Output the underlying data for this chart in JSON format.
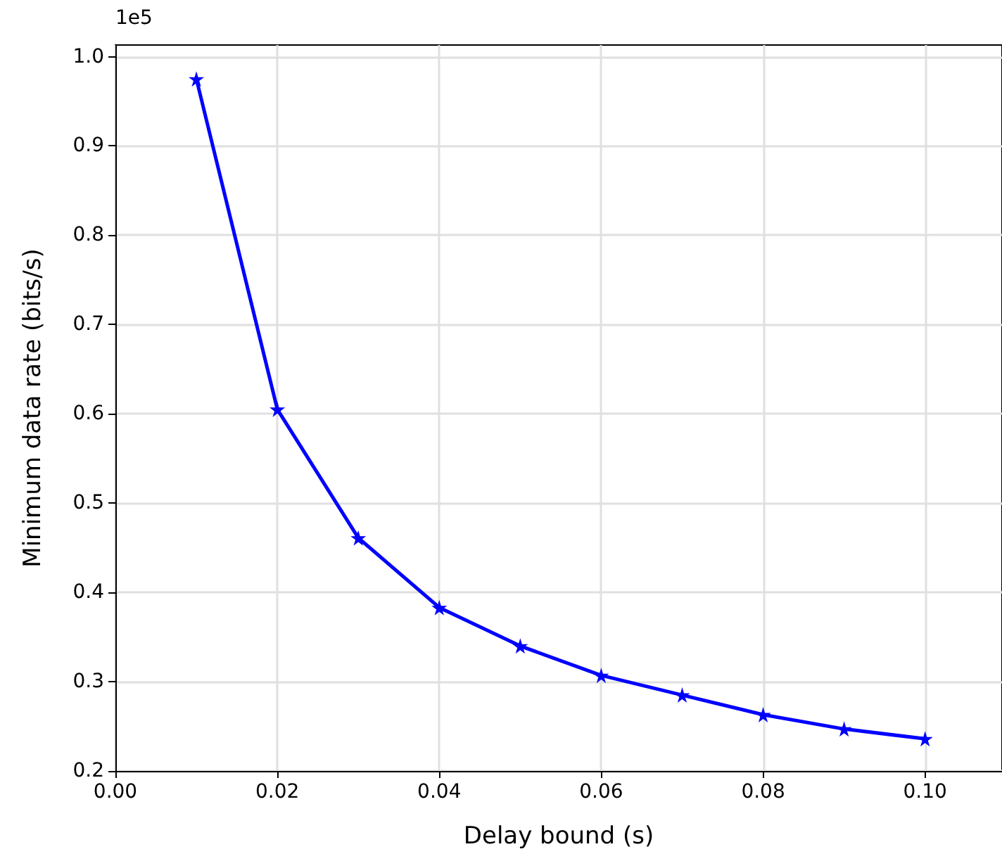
{
  "chart_data": {
    "type": "line",
    "xlabel": "Delay bound (s)",
    "ylabel": "Minimum data rate (bits/s)",
    "annotations": [
      "1e5"
    ],
    "x": [
      0.01,
      0.02,
      0.03,
      0.04,
      0.05,
      0.06,
      0.07,
      0.08,
      0.09,
      0.1
    ],
    "series": [
      {
        "color": "#0000ff",
        "values": [
          0.975,
          0.605,
          0.461,
          0.383,
          0.34,
          0.307,
          0.285,
          0.263,
          0.247,
          0.236
        ]
      }
    ],
    "xlim": [
      0,
      0.1095
    ],
    "ylim": [
      0.2,
      1.013
    ],
    "xticks": [
      {
        "value": 0,
        "label": "0.00"
      },
      {
        "value": 0.02,
        "label": "0.02"
      },
      {
        "value": 0.04,
        "label": "0.04"
      },
      {
        "value": 0.06,
        "label": "0.06"
      },
      {
        "value": 0.08,
        "label": "0.08"
      },
      {
        "value": 0.1,
        "label": "0.10"
      }
    ],
    "yticks": [
      {
        "value": 0.2,
        "label": "0.2"
      },
      {
        "value": 0.3,
        "label": "0.3"
      },
      {
        "value": 0.4,
        "label": "0.4"
      },
      {
        "value": 0.5,
        "label": "0.5"
      },
      {
        "value": 0.6,
        "label": "0.6"
      },
      {
        "value": 0.7,
        "label": "0.7"
      },
      {
        "value": 0.8,
        "label": "0.8"
      },
      {
        "value": 0.9,
        "label": "0.9"
      },
      {
        "value": 1.0,
        "label": "1.0"
      }
    ],
    "grid": true,
    "marker": "star",
    "line_style": "solid"
  }
}
